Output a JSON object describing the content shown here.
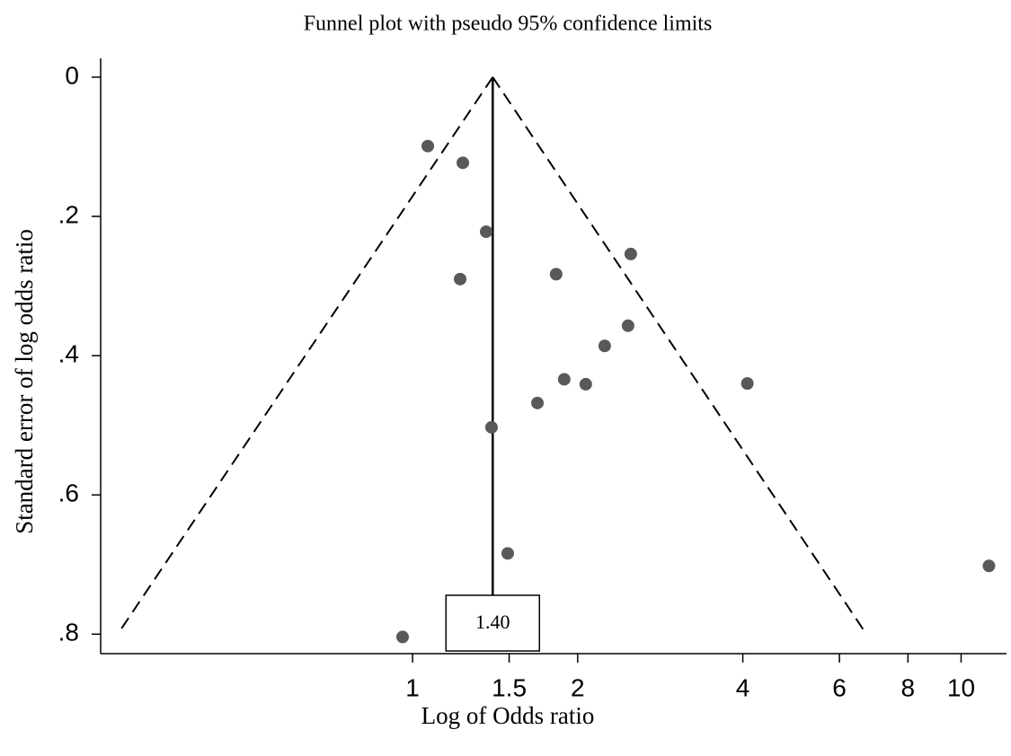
{
  "chart_data": {
    "type": "scatter",
    "title": "Funnel plot with pseudo 95% confidence limits",
    "x_label": "Log of Odds ratio",
    "y_label": "Standard error of log odds ratio",
    "x": [
      1.066,
      1.235,
      1.362,
      1.221,
      1.827,
      2.499,
      2.471,
      2.24,
      1.89,
      2.069,
      4.077,
      1.689,
      1.393,
      1.491,
      11.24,
      0.959
    ],
    "values": [
      0.099,
      0.123,
      0.222,
      0.29,
      0.283,
      0.254,
      0.357,
      0.386,
      0.434,
      0.441,
      0.44,
      0.468,
      0.503,
      0.684,
      0.702,
      0.804
    ],
    "color": "#595959",
    "x_log": true,
    "y_reversed": true,
    "xlim": [
      0.27,
      12.1
    ],
    "ylim": [
      -0.027,
      0.828
    ],
    "xticks": [
      1,
      1.5,
      2,
      4,
      6,
      8,
      10
    ],
    "yticks": [
      0,
      {
        "value": 0.2,
        "label": ".2"
      },
      {
        "value": 0.4,
        "label": ".4"
      },
      {
        "value": 0.6,
        "label": ".6"
      },
      {
        "value": 0.8,
        "label": ".8"
      }
    ],
    "reference_line": {
      "value": 1.4,
      "value_label": "1.40"
    },
    "funnel": {
      "se": [
        0,
        0.8
      ],
      "lower": [
        1.4,
        0.29
      ],
      "upper": [
        1.4,
        6.72
      ]
    }
  }
}
